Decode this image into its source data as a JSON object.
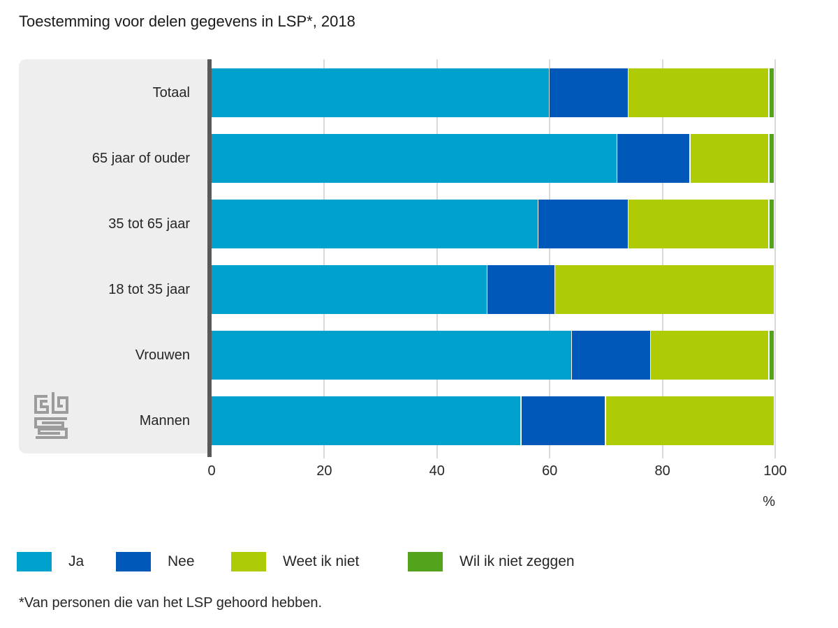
{
  "title": "Toestemming voor delen gegevens in LSP*, 2018",
  "footnote": "*Van personen die van het LSP gehoord hebben.",
  "logo": {
    "name": "cbs-logo"
  },
  "chart_data": {
    "type": "bar",
    "orientation": "horizontal",
    "stacked": true,
    "title": "Toestemming voor delen gegevens in LSP*, 2018",
    "categories": [
      "Totaal",
      "65 jaar of ouder",
      "35 tot 65 jaar",
      "18 tot 35 jaar",
      "Vrouwen",
      "Mannen"
    ],
    "series": [
      {
        "name": "Ja",
        "color": "#00a1cd",
        "values": [
          60,
          72,
          58,
          49,
          64,
          55
        ]
      },
      {
        "name": "Nee",
        "color": "#0058b8",
        "values": [
          14,
          13,
          16,
          12,
          14,
          15
        ]
      },
      {
        "name": "Weet ik niet",
        "color": "#afcb05",
        "values": [
          25,
          14,
          25,
          39,
          21,
          30
        ]
      },
      {
        "name": "Wil ik niet zeggen",
        "color": "#53a31d",
        "values": [
          1,
          1,
          1,
          0,
          1,
          0
        ]
      }
    ],
    "xlim": [
      0,
      100
    ],
    "xticks": [
      0,
      20,
      40,
      60,
      80,
      100
    ],
    "xlabel": "%",
    "grid": true,
    "legend_position": "bottom",
    "colors": {
      "panel_background": "#eeeeee",
      "axis_line": "#58595b",
      "gridline": "#d9d9d9",
      "text": "#262626"
    }
  }
}
